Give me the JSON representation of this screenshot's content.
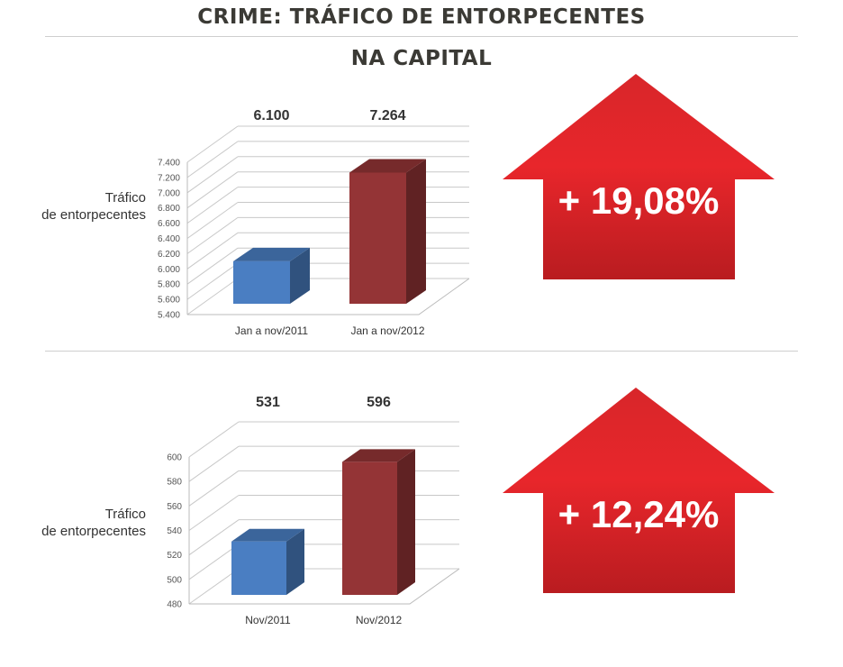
{
  "header": {
    "title": "CRIME: TRÁFICO DE ENTORPECENTES",
    "subtitle": "NA CAPITAL"
  },
  "colors": {
    "bar_2011": "#4a7ec2",
    "bar_2012": "#943436",
    "arrow": "#e8262b",
    "arrow_dark": "#b91c20"
  },
  "chart_data": [
    {
      "type": "bar",
      "ylabel": "Tráfico\nde entorpecentes",
      "categories": [
        "Jan a nov/2011",
        "Jan a nov/2012"
      ],
      "values": [
        6100,
        7264
      ],
      "value_labels": [
        "6.100",
        "7.264"
      ],
      "ylim": [
        5400,
        7400
      ],
      "yticks": [
        5400,
        5600,
        5800,
        6000,
        6200,
        6400,
        6600,
        6800,
        7000,
        7200,
        7400
      ],
      "ytick_labels": [
        "5.400",
        "5.600",
        "5.800",
        "6.000",
        "6.200",
        "6.400",
        "6.600",
        "6.800",
        "7.000",
        "7.200",
        "7.400"
      ],
      "grid": true,
      "change_label": "+ 19,08%"
    },
    {
      "type": "bar",
      "ylabel": "Tráfico\nde entorpecentes",
      "categories": [
        "Nov/2011",
        "Nov/2012"
      ],
      "values": [
        531,
        596
      ],
      "value_labels": [
        "531",
        "596"
      ],
      "ylim": [
        480,
        600
      ],
      "yticks": [
        480,
        500,
        520,
        540,
        560,
        580,
        600
      ],
      "ytick_labels": [
        "480",
        "500",
        "520",
        "540",
        "560",
        "580",
        "600"
      ],
      "grid": true,
      "change_label": "+ 12,24%"
    }
  ]
}
